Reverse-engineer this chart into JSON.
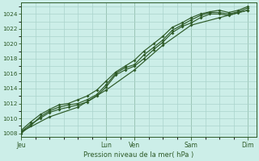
{
  "xlabel": "Pression niveau de la mer( hPa )",
  "background_color": "#cceee8",
  "grid_color": "#aad4cc",
  "line_color": "#2d5a27",
  "ylim": [
    1007.5,
    1025.5
  ],
  "yticks": [
    1008,
    1010,
    1012,
    1014,
    1016,
    1018,
    1020,
    1022,
    1024
  ],
  "day_labels": [
    "Jeu",
    "Lun",
    "Ven",
    "Sam",
    "Dim"
  ],
  "day_positions": [
    0,
    3.0,
    4.0,
    6.0,
    8.0
  ],
  "xlim": [
    0,
    8.3
  ],
  "line1_x": [
    0.0,
    0.33,
    0.67,
    1.0,
    1.33,
    1.67,
    2.0,
    2.33,
    2.67,
    3.0,
    3.33,
    3.67,
    4.0,
    4.33,
    4.67,
    5.0,
    5.33,
    5.67,
    6.0,
    6.33,
    6.67,
    7.0,
    7.33,
    7.67,
    8.0
  ],
  "line1_y": [
    1008.2,
    1009.2,
    1010.0,
    1010.8,
    1011.2,
    1011.5,
    1011.8,
    1012.2,
    1013.0,
    1014.2,
    1015.8,
    1016.5,
    1017.0,
    1018.0,
    1019.2,
    1020.2,
    1021.5,
    1022.3,
    1022.8,
    1023.5,
    1024.0,
    1024.0,
    1023.8,
    1024.2,
    1024.5
  ],
  "line2_x": [
    0.0,
    0.33,
    0.67,
    1.0,
    1.33,
    1.67,
    2.0,
    2.33,
    2.67,
    3.0,
    3.33,
    3.67,
    4.0,
    4.33,
    4.67,
    5.0,
    5.33,
    5.67,
    6.0,
    6.33,
    6.67,
    7.0,
    7.33,
    7.67,
    8.0
  ],
  "line2_y": [
    1008.0,
    1009.0,
    1010.2,
    1011.0,
    1011.5,
    1011.8,
    1012.0,
    1012.5,
    1013.2,
    1014.5,
    1016.0,
    1016.8,
    1017.2,
    1018.5,
    1019.5,
    1020.5,
    1021.8,
    1022.5,
    1023.2,
    1023.8,
    1024.2,
    1024.2,
    1024.0,
    1024.3,
    1024.8
  ],
  "line3_x": [
    0.0,
    0.33,
    0.67,
    1.0,
    1.33,
    1.67,
    2.0,
    2.33,
    2.67,
    3.0,
    3.33,
    3.67,
    4.0,
    4.33,
    4.67,
    5.0,
    5.33,
    5.67,
    6.0,
    6.33,
    6.67,
    7.0,
    7.33,
    7.67,
    8.0
  ],
  "line3_y": [
    1008.4,
    1009.5,
    1010.5,
    1011.2,
    1011.8,
    1012.0,
    1012.5,
    1013.0,
    1013.8,
    1015.0,
    1016.2,
    1017.0,
    1017.8,
    1019.0,
    1020.0,
    1021.0,
    1022.2,
    1022.8,
    1023.5,
    1024.0,
    1024.3,
    1024.5,
    1024.2,
    1024.5,
    1025.0
  ],
  "line4_x": [
    0.0,
    1.0,
    2.0,
    3.0,
    4.0,
    5.0,
    6.0,
    7.0,
    8.0
  ],
  "line4_y": [
    1008.2,
    1010.2,
    1011.5,
    1013.8,
    1016.5,
    1019.8,
    1022.5,
    1023.5,
    1024.5
  ],
  "minor_grid_every": 0.5
}
